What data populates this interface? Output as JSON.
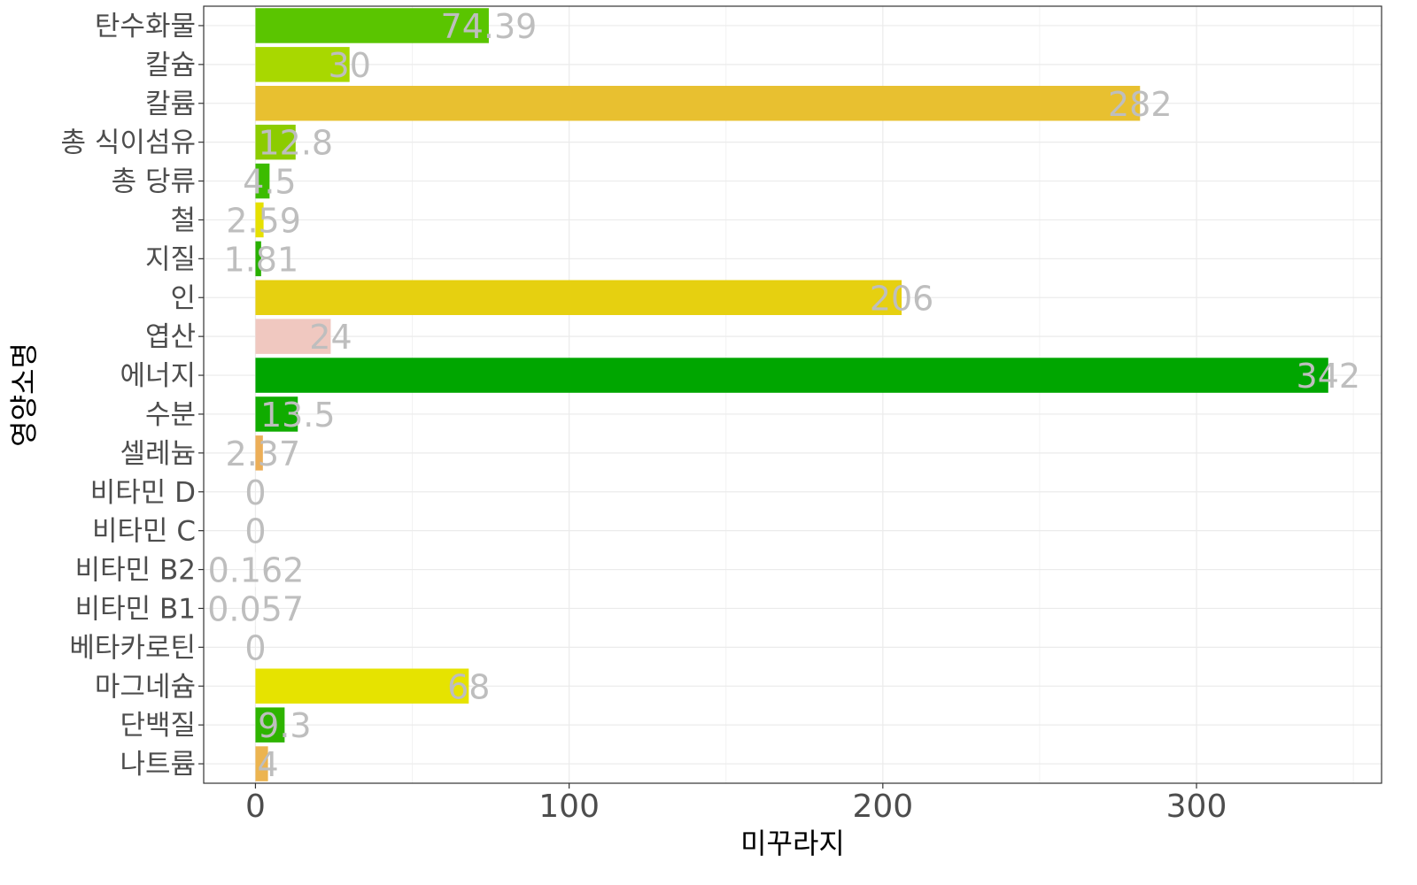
{
  "chart_data": {
    "type": "bar",
    "orientation": "horizontal",
    "title": "",
    "xlabel": "미꾸라지",
    "ylabel": "영양소명",
    "xlim": [
      -16.5,
      359
    ],
    "x_ticks": [
      0,
      100,
      200,
      300
    ],
    "grid": true,
    "legend": "none",
    "label_color": "#bebebe",
    "categories": [
      "탄수화물",
      "칼슘",
      "칼륨",
      "총 식이섬유",
      "총 당류",
      "철",
      "지질",
      "인",
      "엽산",
      "에너지",
      "수분",
      "셀레늄",
      "비타민 D",
      "비타민 C",
      "비타민 B2",
      "비타민 B1",
      "베타카로틴",
      "마그네슘",
      "단백질",
      "나트륨"
    ],
    "values": [
      74.39,
      30,
      282,
      12.8,
      4.5,
      2.59,
      1.81,
      206,
      24,
      342,
      13.5,
      2.37,
      0,
      0,
      0.162,
      0.057,
      0,
      68,
      9.3,
      4
    ],
    "value_labels": [
      "74.39",
      "30",
      "282",
      "12.8",
      "4.5",
      "2.59",
      "1.81",
      "206",
      "24",
      "342",
      "13.5",
      "2.37",
      "0",
      "0",
      "0.162",
      "0.057",
      "0",
      "68",
      "9.3",
      "4"
    ],
    "colors": [
      "#5ac500",
      "#a8d800",
      "#e8c030",
      "#8ccc00",
      "#3cbc00",
      "#e6e000",
      "#28b000",
      "#e6d010",
      "#f0c8c0",
      "#00a600",
      "#10ac00",
      "#ecae58",
      "#ffffff",
      "#ffffff",
      "#ffffff",
      "#ffffff",
      "#ffffff",
      "#e6e300",
      "#2eb400",
      "#ecb450"
    ]
  }
}
